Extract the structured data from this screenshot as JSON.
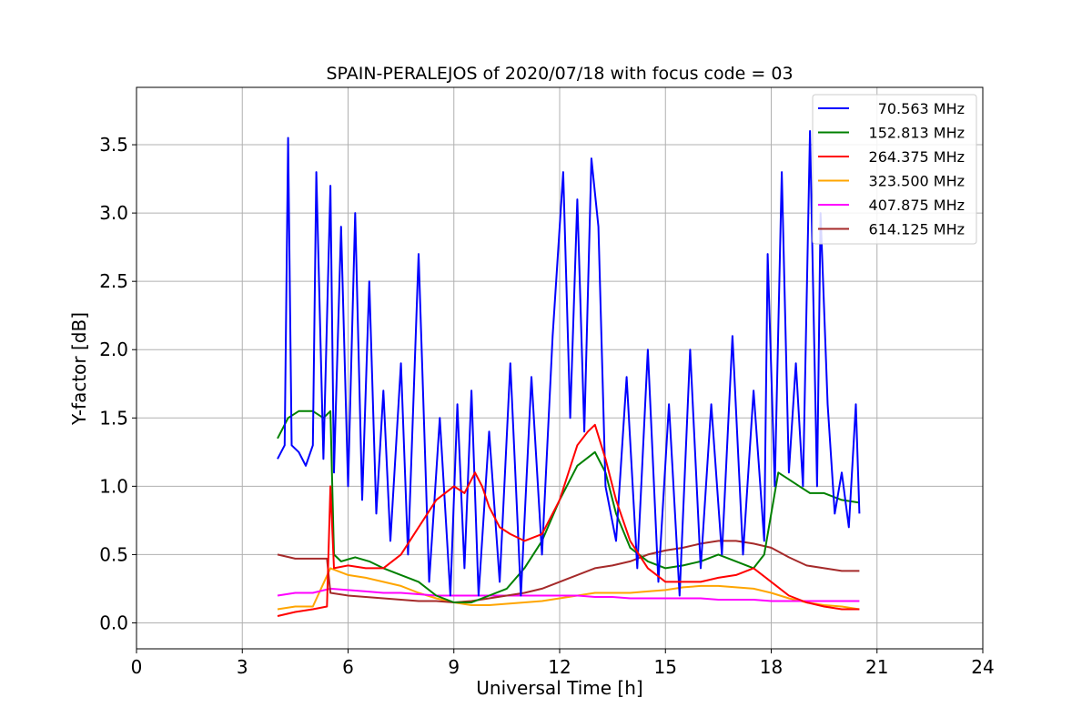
{
  "chart_data": {
    "type": "line",
    "title": "SPAIN-PERALEJOS of 2020/07/18 with focus code = 03",
    "xlabel": "Universal Time [h]",
    "ylabel": "Y-factor [dB]",
    "xlim": [
      0,
      24
    ],
    "ylim": [
      -0.19,
      3.92
    ],
    "xticks": [
      0,
      3,
      6,
      9,
      12,
      15,
      18,
      21,
      24
    ],
    "xtick_labels": [
      "0",
      "3",
      "6",
      "9",
      "12",
      "15",
      "18",
      "21",
      "24"
    ],
    "yticks": [
      0.0,
      0.5,
      1.0,
      1.5,
      2.0,
      2.5,
      3.0,
      3.5
    ],
    "ytick_labels": [
      "0.0",
      "0.5",
      "1.0",
      "1.5",
      "2.0",
      "2.5",
      "3.0",
      "3.5"
    ],
    "grid": true,
    "legend_position": "top-right",
    "series": [
      {
        "name": "70.563 MHz",
        "color": "#0000ff",
        "x": [
          4.0,
          4.2,
          4.3,
          4.4,
          4.6,
          4.8,
          5.0,
          5.1,
          5.3,
          5.5,
          5.6,
          5.8,
          6.0,
          6.2,
          6.4,
          6.6,
          6.8,
          7.0,
          7.2,
          7.5,
          7.7,
          8.0,
          8.3,
          8.6,
          8.9,
          9.1,
          9.3,
          9.5,
          9.7,
          10.0,
          10.3,
          10.6,
          10.9,
          11.2,
          11.5,
          11.8,
          12.1,
          12.3,
          12.5,
          12.7,
          12.9,
          13.1,
          13.3,
          13.6,
          13.9,
          14.2,
          14.5,
          14.8,
          15.1,
          15.4,
          15.7,
          16.0,
          16.3,
          16.6,
          16.9,
          17.2,
          17.5,
          17.8,
          17.9,
          18.1,
          18.3,
          18.5,
          18.7,
          18.9,
          19.1,
          19.3,
          19.4,
          19.6,
          19.8,
          20.0,
          20.2,
          20.4,
          20.5
        ],
        "values": [
          1.2,
          1.3,
          3.55,
          1.3,
          1.25,
          1.15,
          1.3,
          3.3,
          1.2,
          3.2,
          1.1,
          2.9,
          1.0,
          3.0,
          0.9,
          2.5,
          0.8,
          1.7,
          0.6,
          1.9,
          0.5,
          2.7,
          0.3,
          1.5,
          0.2,
          1.6,
          0.4,
          1.7,
          0.2,
          1.4,
          0.3,
          1.9,
          0.2,
          1.8,
          0.5,
          2.1,
          3.3,
          1.5,
          3.1,
          1.4,
          3.4,
          2.9,
          1.0,
          0.6,
          1.8,
          0.4,
          2.0,
          0.3,
          1.6,
          0.2,
          2.0,
          0.4,
          1.6,
          0.5,
          2.1,
          0.5,
          1.7,
          0.6,
          2.7,
          1.0,
          3.3,
          1.1,
          1.9,
          1.0,
          3.6,
          1.0,
          3.0,
          1.6,
          0.8,
          1.1,
          0.7,
          1.6,
          0.8
        ]
      },
      {
        "name": "152.813 MHz",
        "color": "#008000",
        "x": [
          4.0,
          4.3,
          4.6,
          5.0,
          5.3,
          5.5,
          5.6,
          5.8,
          6.2,
          6.6,
          7.0,
          7.5,
          8.0,
          8.5,
          9.0,
          9.5,
          10.0,
          10.5,
          11.0,
          11.5,
          12.0,
          12.5,
          13.0,
          13.3,
          13.6,
          14.0,
          14.5,
          15.0,
          15.5,
          16.0,
          16.5,
          17.0,
          17.5,
          17.8,
          18.0,
          18.2,
          18.5,
          18.8,
          19.1,
          19.5,
          20.0,
          20.5
        ],
        "values": [
          1.35,
          1.5,
          1.55,
          1.55,
          1.5,
          1.55,
          0.5,
          0.45,
          0.48,
          0.45,
          0.4,
          0.35,
          0.3,
          0.2,
          0.15,
          0.15,
          0.2,
          0.25,
          0.4,
          0.6,
          0.9,
          1.15,
          1.25,
          1.1,
          0.8,
          0.55,
          0.45,
          0.4,
          0.42,
          0.45,
          0.5,
          0.45,
          0.4,
          0.5,
          0.8,
          1.1,
          1.05,
          1.0,
          0.95,
          0.95,
          0.9,
          0.88
        ]
      },
      {
        "name": "264.375 MHz",
        "color": "#ff0000",
        "x": [
          4.0,
          4.5,
          5.0,
          5.4,
          5.5,
          5.6,
          6.0,
          6.5,
          7.0,
          7.5,
          8.0,
          8.5,
          9.0,
          9.3,
          9.6,
          9.8,
          10.0,
          10.3,
          10.6,
          11.0,
          11.5,
          12.0,
          12.5,
          12.8,
          13.0,
          13.3,
          13.6,
          14.0,
          14.5,
          15.0,
          15.5,
          16.0,
          16.5,
          17.0,
          17.5,
          18.0,
          18.5,
          19.0,
          19.5,
          20.0,
          20.5
        ],
        "values": [
          0.05,
          0.08,
          0.1,
          0.12,
          1.0,
          0.4,
          0.42,
          0.4,
          0.4,
          0.5,
          0.7,
          0.9,
          1.0,
          0.95,
          1.1,
          1.0,
          0.85,
          0.7,
          0.65,
          0.6,
          0.65,
          0.9,
          1.3,
          1.4,
          1.45,
          1.2,
          0.9,
          0.6,
          0.4,
          0.3,
          0.3,
          0.3,
          0.33,
          0.35,
          0.4,
          0.3,
          0.2,
          0.15,
          0.12,
          0.1,
          0.1
        ]
      },
      {
        "name": "323.500 MHz",
        "color": "#ffa500",
        "x": [
          4.0,
          4.5,
          5.0,
          5.5,
          6.0,
          6.5,
          7.0,
          7.5,
          8.0,
          8.5,
          9.0,
          9.5,
          10.0,
          10.5,
          11.0,
          11.5,
          12.0,
          12.5,
          13.0,
          13.5,
          14.0,
          14.5,
          15.0,
          15.5,
          16.0,
          16.5,
          17.0,
          17.5,
          18.0,
          18.5,
          19.0,
          19.5,
          20.0,
          20.5
        ],
        "values": [
          0.1,
          0.12,
          0.12,
          0.4,
          0.35,
          0.33,
          0.3,
          0.27,
          0.22,
          0.18,
          0.15,
          0.13,
          0.13,
          0.14,
          0.15,
          0.16,
          0.18,
          0.2,
          0.22,
          0.22,
          0.22,
          0.23,
          0.24,
          0.26,
          0.27,
          0.27,
          0.26,
          0.25,
          0.22,
          0.18,
          0.15,
          0.13,
          0.12,
          0.1
        ]
      },
      {
        "name": "407.875 MHz",
        "color": "#ff00ff",
        "x": [
          4.0,
          4.5,
          5.0,
          5.5,
          6.0,
          6.5,
          7.0,
          7.5,
          8.0,
          8.5,
          9.0,
          9.5,
          10.0,
          10.5,
          11.0,
          11.5,
          12.0,
          12.5,
          13.0,
          13.5,
          14.0,
          14.5,
          15.0,
          15.5,
          16.0,
          16.5,
          17.0,
          17.5,
          18.0,
          18.5,
          19.0,
          19.5,
          20.0,
          20.5
        ],
        "values": [
          0.2,
          0.22,
          0.22,
          0.25,
          0.24,
          0.23,
          0.22,
          0.22,
          0.21,
          0.2,
          0.2,
          0.2,
          0.2,
          0.2,
          0.2,
          0.2,
          0.2,
          0.2,
          0.19,
          0.19,
          0.18,
          0.18,
          0.18,
          0.18,
          0.18,
          0.17,
          0.17,
          0.17,
          0.16,
          0.16,
          0.16,
          0.16,
          0.16,
          0.16
        ]
      },
      {
        "name": "614.125 MHz",
        "color": "#a52a2a",
        "x": [
          4.0,
          4.5,
          5.0,
          5.4,
          5.5,
          6.0,
          6.5,
          7.0,
          7.5,
          8.0,
          8.5,
          9.0,
          9.5,
          10.0,
          10.5,
          11.0,
          11.5,
          12.0,
          12.5,
          13.0,
          13.5,
          14.0,
          14.5,
          15.0,
          15.5,
          16.0,
          16.5,
          17.0,
          17.5,
          18.0,
          18.5,
          19.0,
          19.5,
          20.0,
          20.5
        ],
        "values": [
          0.5,
          0.47,
          0.47,
          0.47,
          0.22,
          0.2,
          0.19,
          0.18,
          0.17,
          0.16,
          0.16,
          0.15,
          0.16,
          0.18,
          0.2,
          0.22,
          0.25,
          0.3,
          0.35,
          0.4,
          0.42,
          0.45,
          0.5,
          0.53,
          0.55,
          0.58,
          0.6,
          0.6,
          0.58,
          0.55,
          0.48,
          0.42,
          0.4,
          0.38,
          0.38
        ]
      }
    ]
  }
}
